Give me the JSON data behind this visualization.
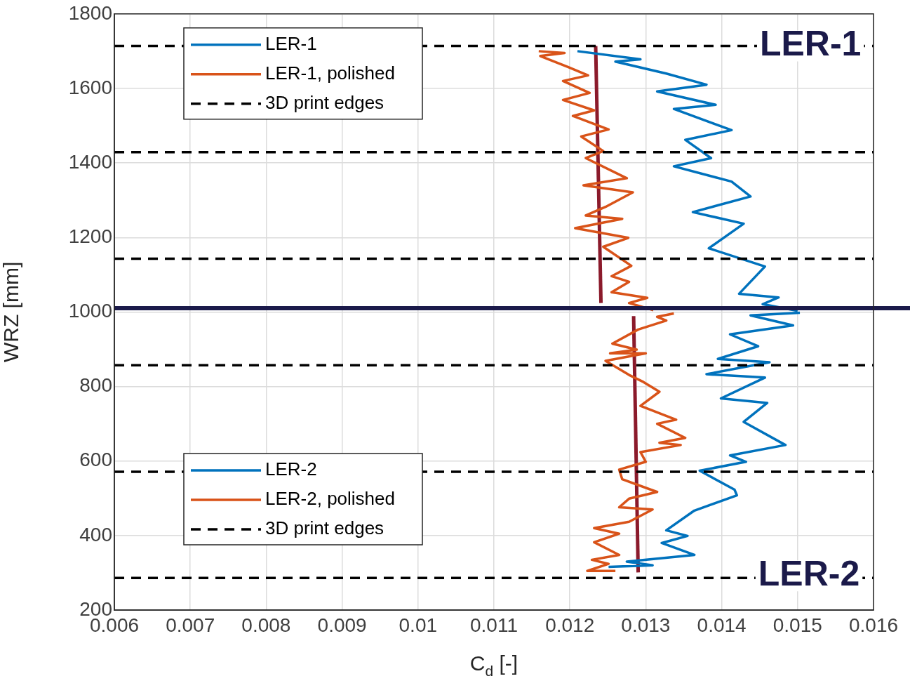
{
  "chart_data": {
    "type": "line",
    "xlabel": "C$_{d}$ [-]",
    "ylabel": "WRZ [mm]",
    "xlim": [
      0.006,
      0.016
    ],
    "xticks": [
      0.006,
      0.007,
      0.008,
      0.009,
      0.01,
      0.011,
      0.012,
      0.013,
      0.014,
      0.015,
      0.016
    ],
    "ylim": [
      200,
      1800
    ],
    "yticks": [
      200,
      400,
      600,
      800,
      1000,
      1200,
      1400,
      1600,
      1800
    ],
    "grid": true,
    "legend": "left",
    "series": [
      {
        "name": "LER-1",
        "color": "#0072bd",
        "x": [
          0.0121,
          0.01293,
          0.0126,
          0.01327,
          0.0138,
          0.01315,
          0.01392,
          0.01337,
          0.01413,
          0.01352,
          0.01386,
          0.01337,
          0.01413,
          0.01438,
          0.01362,
          0.01429,
          0.01383,
          0.01457,
          0.01423,
          0.01475,
          0.01454,
          0.015
        ],
        "values": [
          1700,
          1678,
          1672,
          1640,
          1610,
          1592,
          1556,
          1545,
          1488,
          1462,
          1413,
          1391,
          1350,
          1310,
          1268,
          1237,
          1171,
          1122,
          1049,
          1039,
          1021,
          1003
        ]
      },
      {
        "name": "LER-1, polished",
        "color": "#d95319",
        "x": [
          0.01159,
          0.01193,
          0.01161,
          0.01198,
          0.01224,
          0.01191,
          0.01226,
          0.01191,
          0.01232,
          0.01204,
          0.01251,
          0.01215,
          0.01244,
          0.01221,
          0.01275,
          0.01218,
          0.01283,
          0.01247,
          0.01221,
          0.01269,
          0.01207,
          0.01277,
          0.01244,
          0.01281,
          0.01255,
          0.01278,
          0.01255,
          0.01302,
          0.01278,
          0.0131
        ],
        "values": [
          1700,
          1695,
          1687,
          1657,
          1635,
          1620,
          1588,
          1569,
          1541,
          1526,
          1490,
          1471,
          1432,
          1413,
          1359,
          1340,
          1321,
          1282,
          1259,
          1250,
          1225,
          1199,
          1175,
          1124,
          1096,
          1081,
          1053,
          1038,
          1024,
          1005
        ]
      },
      {
        "name": "LER-2",
        "color": "#0072bd",
        "x": [
          0.01503,
          0.01438,
          0.01494,
          0.01411,
          0.01448,
          0.01395,
          0.01463,
          0.0138,
          0.01457,
          0.01399,
          0.0146,
          0.01429,
          0.01484,
          0.01411,
          0.01432,
          0.01371,
          0.01417,
          0.0142,
          0.01364,
          0.01327,
          0.01355,
          0.01321,
          0.01364,
          0.01275,
          0.01309,
          0.01251
        ],
        "values": [
          998,
          991,
          964,
          940,
          908,
          874,
          865,
          833,
          824,
          768,
          756,
          705,
          643,
          615,
          598,
          574,
          523,
          508,
          467,
          414,
          399,
          380,
          348,
          330,
          320,
          316
        ]
      },
      {
        "name": "LER-2, polished",
        "color": "#d95319",
        "x": [
          0.01337,
          0.01315,
          0.01327,
          0.0129,
          0.01256,
          0.01288,
          0.01253,
          0.013,
          0.01247,
          0.01278,
          0.01297,
          0.01318,
          0.01293,
          0.0134,
          0.01315,
          0.01352,
          0.01318,
          0.01346,
          0.01293,
          0.013,
          0.01265,
          0.01269,
          0.01315,
          0.01278,
          0.01265,
          0.01309,
          0.01278,
          0.01232,
          0.01265,
          0.01232,
          0.01265,
          0.01229,
          0.01251,
          0.01223,
          0.0126
        ],
        "values": [
          996,
          987,
          977,
          953,
          915,
          899,
          889,
          889,
          869,
          831,
          812,
          786,
          748,
          711,
          700,
          662,
          649,
          643,
          624,
          598,
          577,
          551,
          517,
          499,
          476,
          470,
          437,
          420,
          405,
          382,
          348,
          335,
          324,
          305,
          305
        ]
      },
      {
        "type": "line",
        "color": "#8b1a2b",
        "x": [
          0.01234,
          0.01241
        ],
        "values": [
          1714,
          1024
        ]
      },
      {
        "type": "line",
        "color": "#8b1a2b",
        "x": [
          0.01284,
          0.0129
        ],
        "values": [
          989,
          301
        ]
      }
    ],
    "ref_lines": [
      {
        "axis": "y",
        "value": 1714,
        "label": "3D print edges",
        "color": "#000000",
        "line_style": "dashed"
      },
      {
        "axis": "y",
        "value": 1429,
        "label": "3D print edges",
        "color": "#000000",
        "line_style": "dashed"
      },
      {
        "axis": "y",
        "value": 1143,
        "color": "#000000",
        "line_style": "dashed"
      },
      {
        "axis": "y",
        "value": 857,
        "color": "#000000",
        "line_style": "dashed"
      },
      {
        "axis": "y",
        "value": 571,
        "color": "#000000",
        "line_style": "dashed"
      },
      {
        "axis": "y",
        "value": 286,
        "color": "#000000",
        "line_style": "dashed"
      },
      {
        "axis": "y",
        "value": 1010,
        "color": "#1b1a4a",
        "line_style": "solid"
      }
    ],
    "annotations": [
      {
        "text": "LER-1",
        "x": 0.01517,
        "y": 1714
      },
      {
        "text": "LER-2",
        "x": 0.01515,
        "y": 292
      }
    ]
  }
}
